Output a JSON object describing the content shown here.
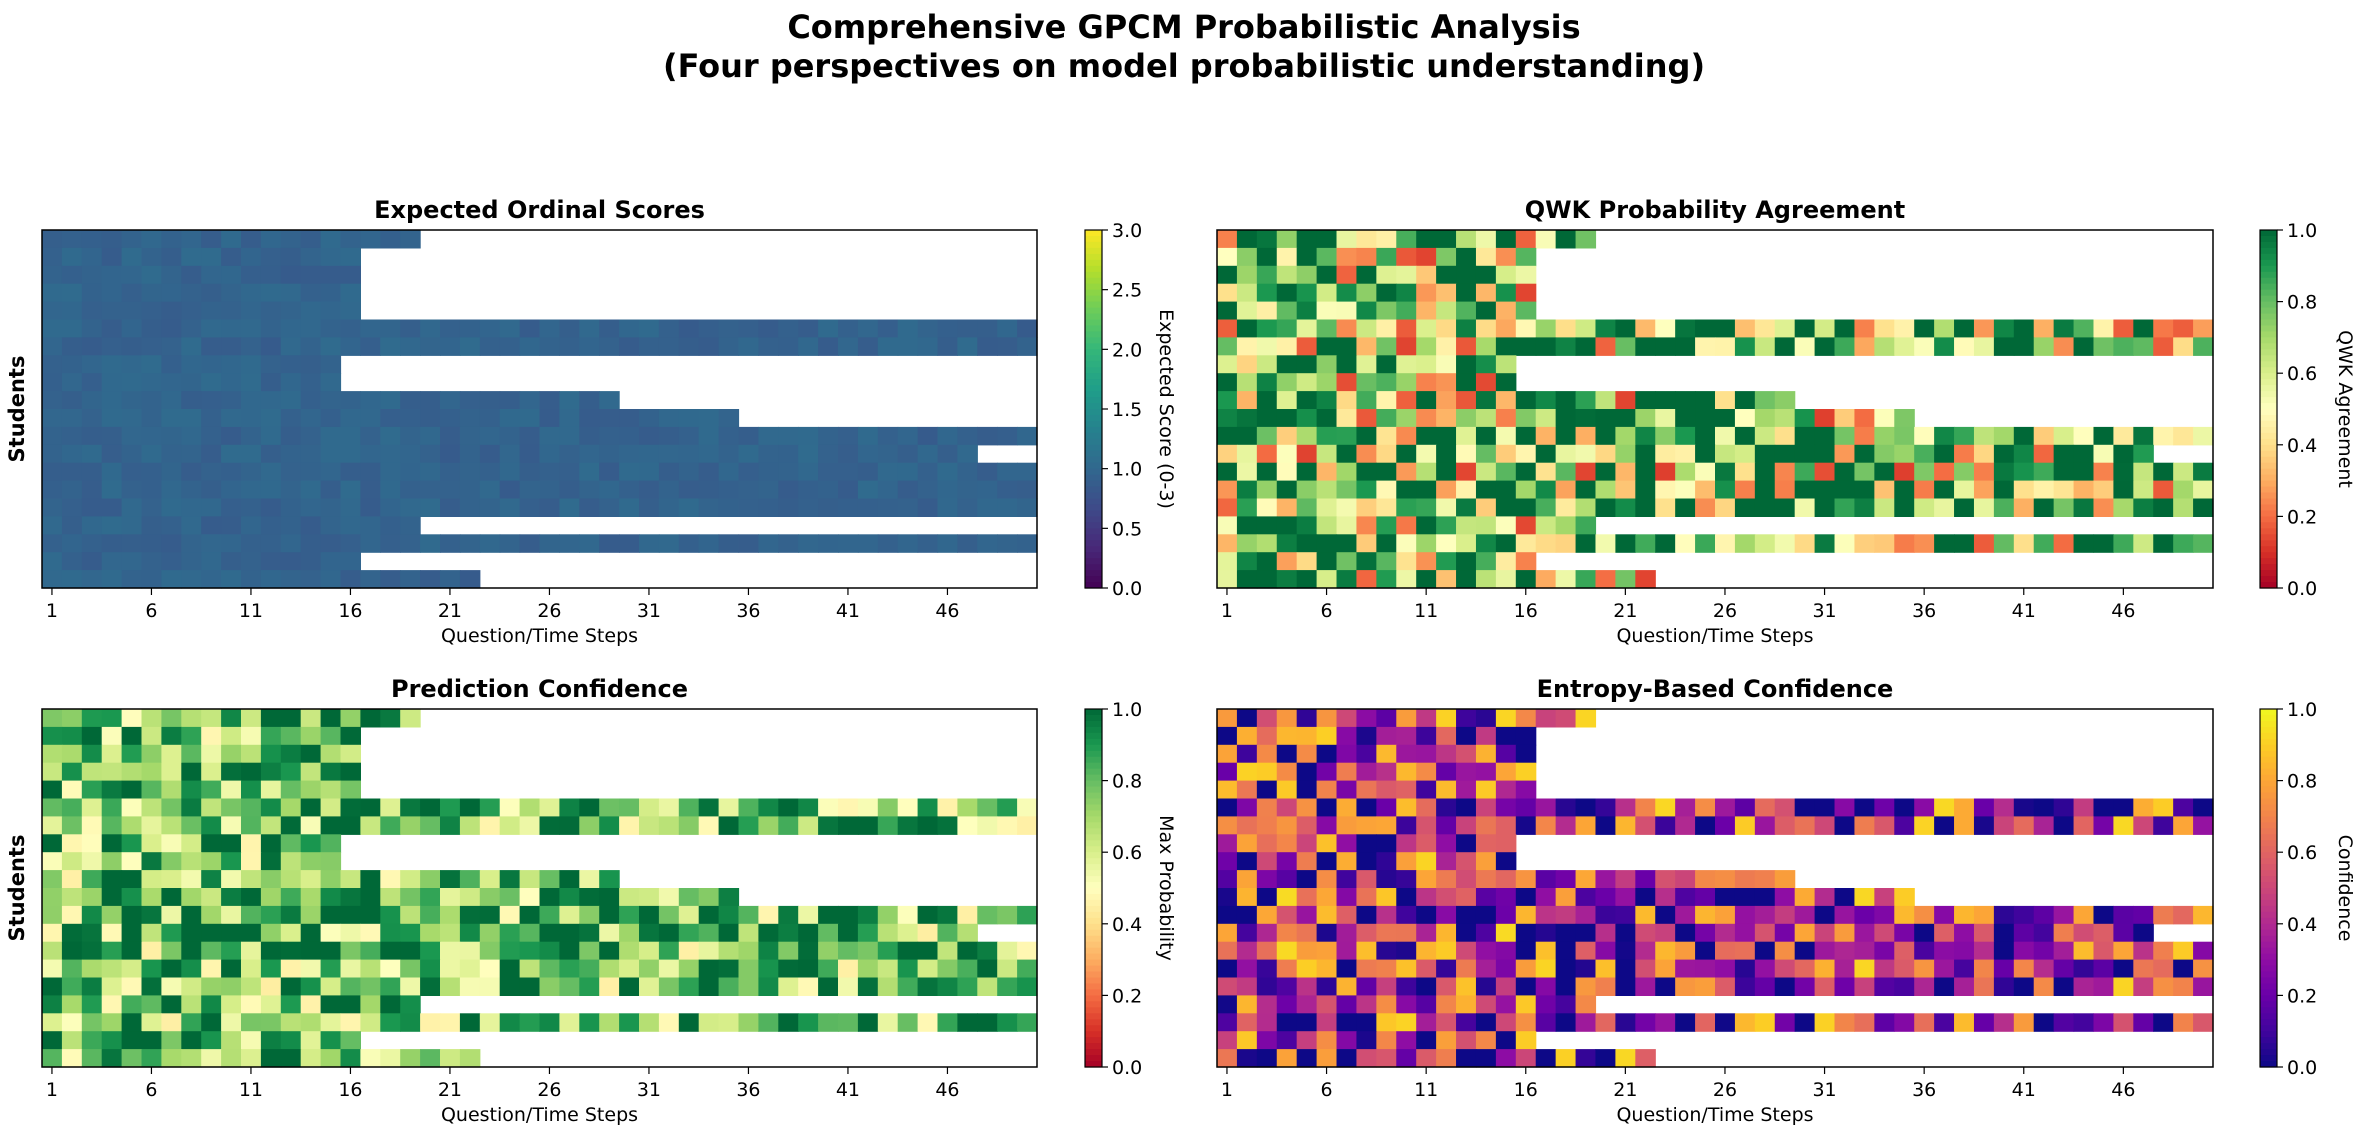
{
  "figure": {
    "title_line1": "Comprehensive GPCM Probabilistic Analysis",
    "title_line2": "(Four perspectives on model probabilistic understanding)"
  },
  "rows": 20,
  "cols": 50,
  "row_lengths": [
    19,
    16,
    16,
    16,
    16,
    50,
    50,
    15,
    15,
    29,
    35,
    50,
    47,
    50,
    50,
    50,
    19,
    50,
    16,
    22
  ],
  "chart_data": [
    {
      "type": "heatmap",
      "title": "Expected Ordinal Scores",
      "xlabel": "Question/Time Steps",
      "ylabel": "Students",
      "x_ticks": [
        "1",
        "6",
        "11",
        "16",
        "21",
        "26",
        "31",
        "36",
        "41",
        "46"
      ],
      "colorbar_label": "Expected Score (0-3)",
      "colorbar_range": [
        0,
        3
      ],
      "colorbar_ticks": [
        "0.0",
        "0.5",
        "1.0",
        "1.5",
        "2.0",
        "2.5",
        "3.0"
      ],
      "colormap": "viridis",
      "base_level": 0.95,
      "variation": 0.18
    },
    {
      "type": "heatmap",
      "title": "QWK Probability Agreement",
      "xlabel": "Question/Time Steps",
      "ylabel": "",
      "x_ticks": [
        "1",
        "6",
        "11",
        "16",
        "21",
        "26",
        "31",
        "36",
        "41",
        "46"
      ],
      "colorbar_label": "QWK Agreement",
      "colorbar_range": [
        0,
        1
      ],
      "colorbar_ticks": [
        "0.0",
        "0.2",
        "0.4",
        "0.6",
        "0.8",
        "1.0"
      ],
      "colormap": "RdYlGn",
      "base_level": 0.72,
      "variation": 0.6
    },
    {
      "type": "heatmap",
      "title": "Prediction Confidence",
      "xlabel": "Question/Time Steps",
      "ylabel": "Students",
      "x_ticks": [
        "1",
        "6",
        "11",
        "16",
        "21",
        "26",
        "31",
        "36",
        "41",
        "46"
      ],
      "colorbar_label": "Max Probability",
      "colorbar_range": [
        0,
        1
      ],
      "colorbar_ticks": [
        "0.0",
        "0.2",
        "0.4",
        "0.6",
        "0.8",
        "1.0"
      ],
      "colormap": "RdYlGn",
      "base_level": 0.78,
      "variation": 0.34
    },
    {
      "type": "heatmap",
      "title": "Entropy-Based Confidence",
      "xlabel": "Question/Time Steps",
      "ylabel": "",
      "x_ticks": [
        "1",
        "6",
        "11",
        "16",
        "21",
        "26",
        "31",
        "36",
        "41",
        "46"
      ],
      "colorbar_label": "Confidence",
      "colorbar_range": [
        0,
        1
      ],
      "colorbar_ticks": [
        "0.0",
        "0.2",
        "0.4",
        "0.6",
        "0.8",
        "1.0"
      ],
      "colormap": "plasma",
      "base_level": 0.38,
      "variation": 0.55
    }
  ]
}
